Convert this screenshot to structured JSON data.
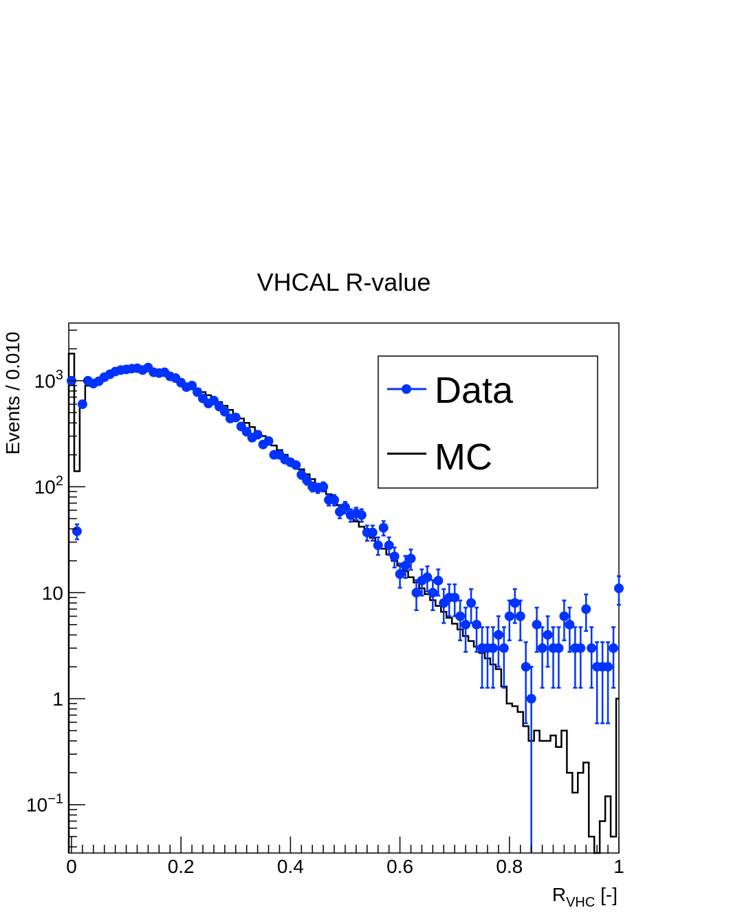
{
  "chart_data": {
    "type": "scatter",
    "title": "VHCAL R-value",
    "xlabel": {
      "main": "R",
      "sub": "VHC",
      "suffix": " [-]"
    },
    "ylabel": "Events / 0.010",
    "xlim": [
      -0.005,
      1.0
    ],
    "ylim": [
      0.035,
      3500
    ],
    "yscale": "log",
    "x_ticks": [
      {
        "value": 0,
        "label": "0"
      },
      {
        "value": 0.2,
        "label": "0.2"
      },
      {
        "value": 0.4,
        "label": "0.4"
      },
      {
        "value": 0.6,
        "label": "0.6"
      },
      {
        "value": 0.8,
        "label": "0.8"
      },
      {
        "value": 1.0,
        "label": "1"
      }
    ],
    "y_ticks": [
      {
        "value": 0.1,
        "base": "10",
        "exp": "−1"
      },
      {
        "value": 1,
        "base": "1",
        "exp": ""
      },
      {
        "value": 10,
        "base": "10",
        "exp": ""
      },
      {
        "value": 100,
        "base": "10",
        "exp": "2"
      },
      {
        "value": 1000,
        "base": "10",
        "exp": "3"
      }
    ],
    "legend": {
      "position": "top-right",
      "entries": [
        "Data",
        "MC"
      ]
    },
    "colors": {
      "data": "#0033ff",
      "mc": "#000000"
    },
    "series": [
      {
        "name": "Data",
        "style": "points-with-errors",
        "points": [
          [
            0.0,
            1000
          ],
          [
            0.01,
            38
          ],
          [
            0.02,
            600
          ],
          [
            0.03,
            1000
          ],
          [
            0.04,
            940
          ],
          [
            0.05,
            990
          ],
          [
            0.06,
            1080
          ],
          [
            0.07,
            1150
          ],
          [
            0.08,
            1220
          ],
          [
            0.09,
            1260
          ],
          [
            0.1,
            1280
          ],
          [
            0.11,
            1300
          ],
          [
            0.12,
            1310
          ],
          [
            0.13,
            1260
          ],
          [
            0.14,
            1330
          ],
          [
            0.15,
            1200
          ],
          [
            0.16,
            1180
          ],
          [
            0.17,
            1200
          ],
          [
            0.18,
            1100
          ],
          [
            0.19,
            1060
          ],
          [
            0.2,
            960
          ],
          [
            0.21,
            870
          ],
          [
            0.22,
            900
          ],
          [
            0.23,
            780
          ],
          [
            0.24,
            680
          ],
          [
            0.25,
            610
          ],
          [
            0.26,
            650
          ],
          [
            0.27,
            570
          ],
          [
            0.28,
            510
          ],
          [
            0.29,
            440
          ],
          [
            0.3,
            450
          ],
          [
            0.31,
            370
          ],
          [
            0.32,
            330
          ],
          [
            0.33,
            290
          ],
          [
            0.34,
            310
          ],
          [
            0.35,
            250
          ],
          [
            0.36,
            270
          ],
          [
            0.37,
            200
          ],
          [
            0.38,
            200
          ],
          [
            0.39,
            180
          ],
          [
            0.4,
            170
          ],
          [
            0.41,
            160
          ],
          [
            0.42,
            130
          ],
          [
            0.43,
            115
          ],
          [
            0.44,
            100
          ],
          [
            0.45,
            97
          ],
          [
            0.46,
            100
          ],
          [
            0.47,
            75
          ],
          [
            0.48,
            75
          ],
          [
            0.49,
            58
          ],
          [
            0.5,
            64
          ],
          [
            0.51,
            54
          ],
          [
            0.52,
            56
          ],
          [
            0.53,
            54
          ],
          [
            0.54,
            37
          ],
          [
            0.55,
            37
          ],
          [
            0.56,
            28
          ],
          [
            0.57,
            41
          ],
          [
            0.58,
            28
          ],
          [
            0.59,
            22
          ],
          [
            0.6,
            15
          ],
          [
            0.61,
            18
          ],
          [
            0.62,
            21
          ],
          [
            0.63,
            10
          ],
          [
            0.64,
            13
          ],
          [
            0.65,
            14
          ],
          [
            0.66,
            10
          ],
          [
            0.67,
            13
          ],
          [
            0.68,
            8
          ],
          [
            0.69,
            9
          ],
          [
            0.7,
            9
          ],
          [
            0.71,
            6
          ],
          [
            0.72,
            5
          ],
          [
            0.73,
            8
          ],
          [
            0.74,
            5
          ],
          [
            0.75,
            3
          ],
          [
            0.76,
            3
          ],
          [
            0.77,
            3
          ],
          [
            0.78,
            4
          ],
          [
            0.79,
            3
          ],
          [
            0.8,
            6
          ],
          [
            0.81,
            8
          ],
          [
            0.82,
            6
          ],
          [
            0.83,
            2
          ],
          [
            0.84,
            1
          ],
          [
            0.85,
            5
          ],
          [
            0.86,
            3
          ],
          [
            0.87,
            4
          ],
          [
            0.88,
            3
          ],
          [
            0.89,
            3
          ],
          [
            0.9,
            6
          ],
          [
            0.91,
            5
          ],
          [
            0.92,
            3
          ],
          [
            0.93,
            3
          ],
          [
            0.94,
            7
          ],
          [
            0.95,
            3
          ],
          [
            0.96,
            2
          ],
          [
            0.97,
            2
          ],
          [
            0.98,
            2
          ],
          [
            0.99,
            3
          ],
          [
            1.0,
            11
          ]
        ]
      },
      {
        "name": "MC",
        "style": "step",
        "bin_width": 0.01,
        "bin_edges_start": -0.005,
        "values": [
          1800,
          140,
          600,
          900,
          920,
          990,
          1060,
          1140,
          1200,
          1250,
          1280,
          1300,
          1310,
          1300,
          1270,
          1240,
          1200,
          1160,
          1120,
          1060,
          1000,
          940,
          890,
          840,
          780,
          730,
          680,
          630,
          580,
          530,
          480,
          440,
          400,
          365,
          330,
          300,
          272,
          245,
          222,
          200,
          180,
          162,
          146,
          131,
          118,
          106,
          95,
          85,
          76,
          67,
          60,
          53,
          47,
          42,
          37,
          33,
          29,
          26,
          23,
          20,
          18,
          16,
          14,
          12.5,
          11,
          9.7,
          8.5,
          7.5,
          6.6,
          5.8,
          5.1,
          4.5,
          3.9,
          3.5,
          3.1,
          2.7,
          2.4,
          2.1,
          1.9,
          1.3,
          0.9,
          0.85,
          0.75,
          0.55,
          0.4,
          0.5,
          0.4,
          0.4,
          0.45,
          0.35,
          0.5,
          0.2,
          0.13,
          0.2,
          0.25,
          0.05,
          0.02,
          0.07,
          0.12,
          0.05,
          1.0
        ]
      }
    ]
  }
}
